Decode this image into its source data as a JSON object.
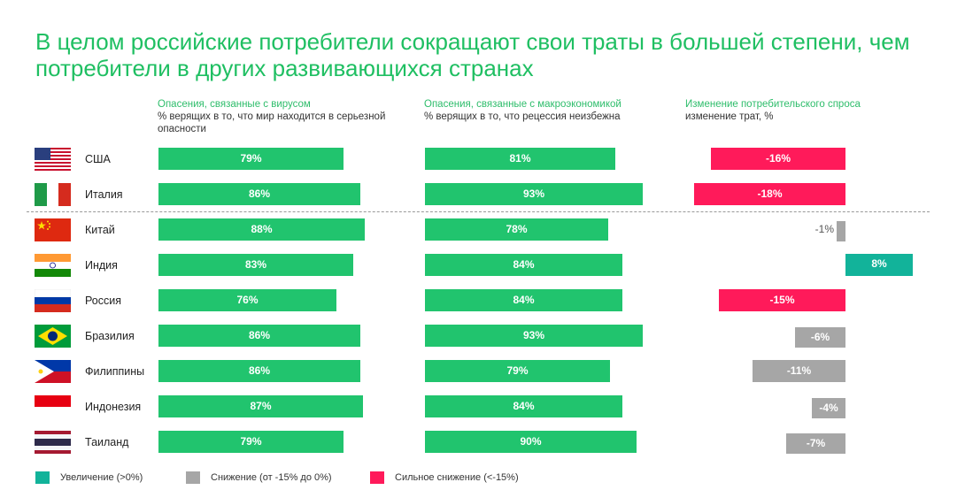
{
  "title": "В целом российские потребители сокращают свои траты в большей степени, чем потребители в других развивающихся странах",
  "columns": [
    {
      "heading": "Опасения, связанные с вирусом",
      "subheading": "% верящих в то, что мир находится в серьезной опасности"
    },
    {
      "heading": "Опасения, связанные с макроэкономикой",
      "subheading": "% верящих в то, что рецессия неизбежна"
    },
    {
      "heading": "Изменение потребительского спроса",
      "subheading": "изменение трат, %"
    }
  ],
  "legend": [
    {
      "label": "Увеличение (>0%)",
      "color": "#12b39a"
    },
    {
      "label": "Снижение (от -15% до 0%)",
      "color": "#a6a6a6"
    },
    {
      "label": "Сильное снижение (<-15%)",
      "color": "#ff1a5a"
    }
  ],
  "colors": {
    "title": "#1fbf62",
    "bar": "#21c46e",
    "increase": "#12b39a",
    "decrease": "#a6a6a6",
    "strong_decrease": "#ff1a5a"
  },
  "chart_data": {
    "type": "bar",
    "categories": [
      "США",
      "Италия",
      "Китай",
      "Индия",
      "Россия",
      "Бразилия",
      "Филиппины",
      "Индонезия",
      "Таиланд"
    ],
    "flags": [
      "usa-flag",
      "italy-flag",
      "china-flag",
      "india-flag",
      "russia-flag",
      "brazil-flag",
      "philippines-flag",
      "indonesia-flag",
      "thailand-flag"
    ],
    "series": [
      {
        "values": [
          79,
          86,
          88,
          83,
          76,
          86,
          86,
          87,
          79
        ],
        "labels": [
          "79%",
          "86%",
          "88%",
          "83%",
          "76%",
          "86%",
          "86%",
          "87%",
          "79%"
        ]
      },
      {
        "values": [
          81,
          93,
          78,
          84,
          84,
          93,
          79,
          84,
          90
        ],
        "labels": [
          "81%",
          "93%",
          "78%",
          "84%",
          "84%",
          "93%",
          "79%",
          "84%",
          "90%"
        ]
      },
      {
        "values": [
          -16,
          -18,
          -1,
          8,
          -15,
          -6,
          -11,
          -4,
          -7
        ],
        "labels": [
          "-16%",
          "-18%",
          "-1%",
          "8%",
          "-15%",
          "-6%",
          "-11%",
          "-4%",
          "-7%"
        ]
      }
    ],
    "divider_after": "Италия"
  }
}
